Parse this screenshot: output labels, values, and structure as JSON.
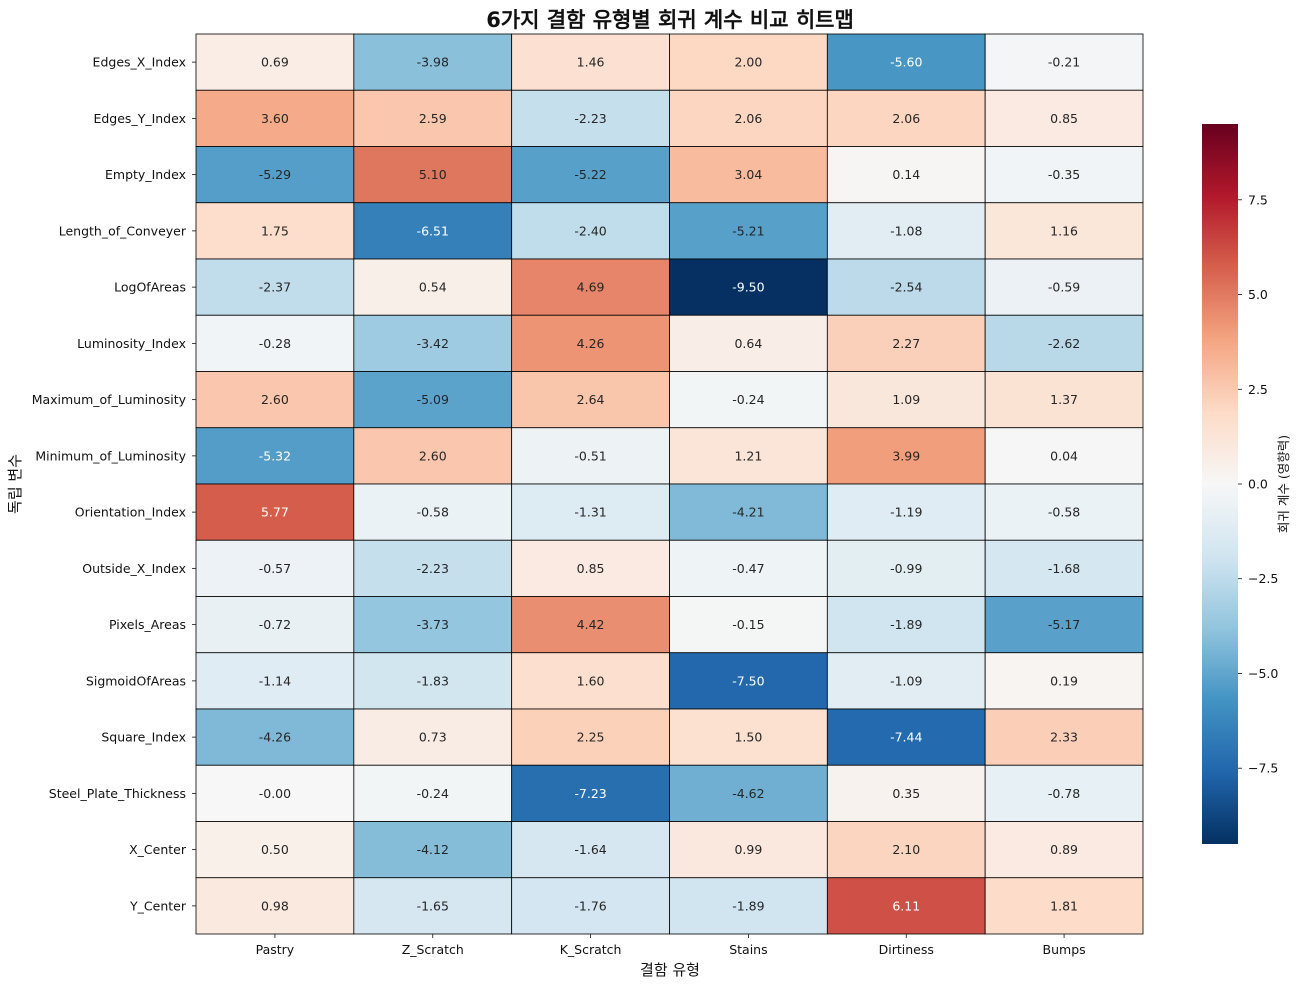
{
  "chart_data": {
    "type": "heatmap",
    "title": "6가지 결함 유형별 회귀 계수 비교 히트맵",
    "xlabel": "결함 유형",
    "ylabel": "독립 변수",
    "columns": [
      "Pastry",
      "Z_Scratch",
      "K_Scratch",
      "Stains",
      "Dirtiness",
      "Bumps"
    ],
    "rows": [
      "Edges_X_Index",
      "Edges_Y_Index",
      "Empty_Index",
      "Length_of_Conveyer",
      "LogOfAreas",
      "Luminosity_Index",
      "Maximum_of_Luminosity",
      "Minimum_of_Luminosity",
      "Orientation_Index",
      "Outside_X_Index",
      "Pixels_Areas",
      "SigmoidOfAreas",
      "Square_Index",
      "Steel_Plate_Thickness",
      "X_Center",
      "Y_Center"
    ],
    "values": [
      [
        0.69,
        -3.98,
        1.46,
        2.0,
        -5.6,
        -0.21
      ],
      [
        3.6,
        2.59,
        -2.23,
        2.06,
        2.06,
        0.85
      ],
      [
        -5.29,
        5.1,
        -5.22,
        3.04,
        0.14,
        -0.35
      ],
      [
        1.75,
        -6.51,
        -2.4,
        -5.21,
        -1.08,
        1.16
      ],
      [
        -2.37,
        0.54,
        4.69,
        -9.5,
        -2.54,
        -0.59
      ],
      [
        -0.28,
        -3.42,
        4.26,
        0.64,
        2.27,
        -2.62
      ],
      [
        2.6,
        -5.09,
        2.64,
        -0.24,
        1.09,
        1.37
      ],
      [
        -5.32,
        2.6,
        -0.51,
        1.21,
        3.99,
        0.04
      ],
      [
        5.77,
        -0.58,
        -1.31,
        -4.21,
        -1.19,
        -0.58
      ],
      [
        -0.57,
        -2.23,
        0.85,
        -0.47,
        -0.99,
        -1.68
      ],
      [
        -0.72,
        -3.73,
        4.42,
        -0.15,
        -1.89,
        -5.17
      ],
      [
        -1.14,
        -1.83,
        1.6,
        -7.5,
        -1.09,
        0.19
      ],
      [
        -4.26,
        0.73,
        2.25,
        1.5,
        -7.44,
        2.33
      ],
      [
        -0.0,
        -0.24,
        -7.23,
        -4.62,
        0.35,
        -0.78
      ],
      [
        0.5,
        -4.12,
        -1.64,
        0.99,
        2.1,
        0.89
      ],
      [
        0.98,
        -1.65,
        -1.76,
        -1.89,
        6.11,
        1.81
      ]
    ],
    "value_labels": [
      [
        "0.69",
        "-3.98",
        "1.46",
        "2.00",
        "-5.60",
        "-0.21"
      ],
      [
        "3.60",
        "2.59",
        "-2.23",
        "2.06",
        "2.06",
        "0.85"
      ],
      [
        "-5.29",
        "5.10",
        "-5.22",
        "3.04",
        "0.14",
        "-0.35"
      ],
      [
        "1.75",
        "-6.51",
        "-2.40",
        "-5.21",
        "-1.08",
        "1.16"
      ],
      [
        "-2.37",
        "0.54",
        "4.69",
        "-9.50",
        "-2.54",
        "-0.59"
      ],
      [
        "-0.28",
        "-3.42",
        "4.26",
        "0.64",
        "2.27",
        "-2.62"
      ],
      [
        "2.60",
        "-5.09",
        "2.64",
        "-0.24",
        "1.09",
        "1.37"
      ],
      [
        "-5.32",
        "2.60",
        "-0.51",
        "1.21",
        "3.99",
        "0.04"
      ],
      [
        "5.77",
        "-0.58",
        "-1.31",
        "-4.21",
        "-1.19",
        "-0.58"
      ],
      [
        "-0.57",
        "-2.23",
        "0.85",
        "-0.47",
        "-0.99",
        "-1.68"
      ],
      [
        "-0.72",
        "-3.73",
        "4.42",
        "-0.15",
        "-1.89",
        "-5.17"
      ],
      [
        "-1.14",
        "-1.83",
        "1.60",
        "-7.50",
        "-1.09",
        "0.19"
      ],
      [
        "-4.26",
        "0.73",
        "2.25",
        "1.50",
        "-7.44",
        "2.33"
      ],
      [
        "-0.00",
        "-0.24",
        "-7.23",
        "-4.62",
        "0.35",
        "-0.78"
      ],
      [
        "0.50",
        "-4.12",
        "-1.64",
        "0.99",
        "2.10",
        "0.89"
      ],
      [
        "0.98",
        "-1.65",
        "-1.76",
        "-1.89",
        "6.11",
        "1.81"
      ]
    ],
    "colormap": "RdBu_r",
    "vmin": -9.5,
    "vmax": 9.5,
    "colorbar": {
      "label": "회귀 계수 (영향력)",
      "ticks": [
        -7.5,
        -5.0,
        -2.5,
        0.0,
        2.5,
        5.0,
        7.5
      ],
      "tick_labels": [
        "−7.5",
        "−5.0",
        "−2.5",
        "0.0",
        "2.5",
        "5.0",
        "7.5"
      ]
    },
    "colormap_stops": [
      "#053061",
      "#2166ac",
      "#4393c3",
      "#92c5de",
      "#d1e5f0",
      "#f7f7f7",
      "#fddbc7",
      "#f4a582",
      "#d6604d",
      "#b2182b",
      "#67001f"
    ],
    "cell_border_color": "#000000"
  }
}
